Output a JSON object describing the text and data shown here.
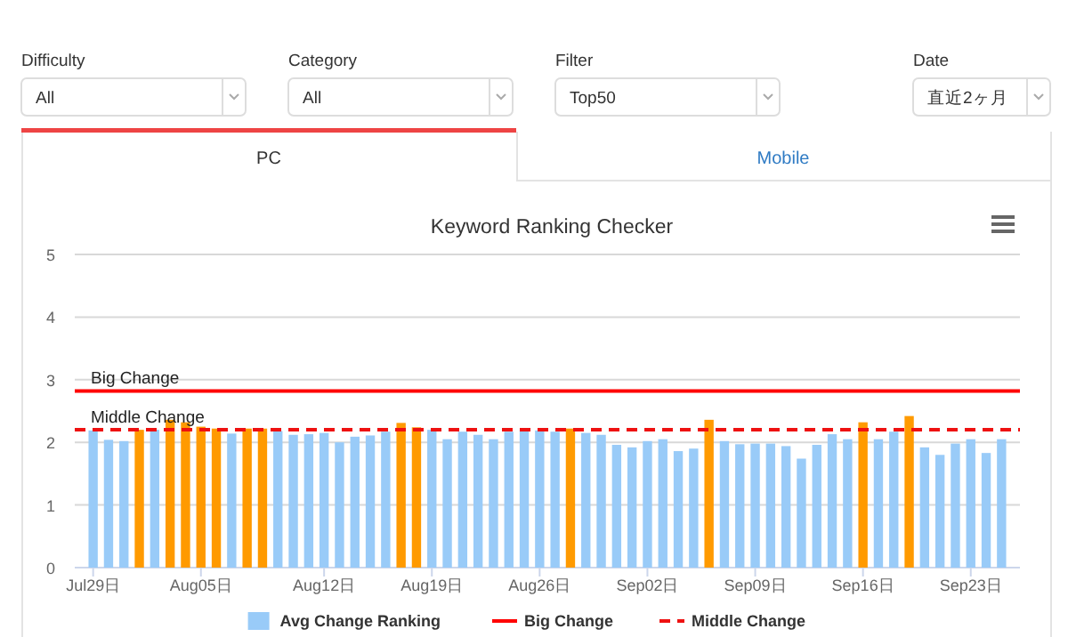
{
  "chart_data": {
    "type": "bar",
    "title": "Keyword Ranking Checker",
    "annotations": [
      "Difficulty",
      "All",
      "Category",
      "All",
      "Filter",
      "Top50",
      "Date",
      "直近2ヶ月",
      "PC",
      "Mobile"
    ],
    "categories": [
      "Jul29日",
      null,
      null,
      null,
      null,
      null,
      null,
      "Aug05日",
      null,
      null,
      null,
      null,
      null,
      null,
      null,
      "Aug12日",
      null,
      null,
      null,
      null,
      null,
      null,
      "Aug19日",
      null,
      null,
      null,
      null,
      null,
      null,
      "Aug26日",
      null,
      null,
      null,
      null,
      null,
      null,
      "Sep02日",
      null,
      null,
      null,
      null,
      null,
      null,
      "Sep09日",
      null,
      null,
      null,
      null,
      null,
      null,
      "Sep16日",
      null,
      null,
      null,
      null,
      null,
      null,
      "Sep23日",
      null,
      null
    ],
    "series": [
      {
        "name": "Avg Change Ranking",
        "color": "#99cbf8",
        "values": [
          2.19,
          2.04,
          2.02,
          2.2,
          2.2,
          2.36,
          2.32,
          2.25,
          2.22,
          2.14,
          2.22,
          2.22,
          2.18,
          2.12,
          2.13,
          2.15,
          2.0,
          2.09,
          2.11,
          2.17,
          2.31,
          2.24,
          2.2,
          2.05,
          2.17,
          2.12,
          2.05,
          2.17,
          2.19,
          2.19,
          2.17,
          2.22,
          2.15,
          2.12,
          1.96,
          1.92,
          2.02,
          2.05,
          1.86,
          1.9,
          2.36,
          2.02,
          1.97,
          1.98,
          1.98,
          1.94,
          1.74,
          1.96,
          2.13,
          2.05,
          2.32,
          2.05,
          2.17,
          2.42,
          1.92,
          1.8,
          1.98,
          2.05,
          1.83,
          2.05
        ],
        "colors": [
          "#99cbf8",
          "#99cbf8",
          "#99cbf8",
          "#ff9a00",
          "#99cbf8",
          "#ff9a00",
          "#ff9a00",
          "#ff9a00",
          "#ff9a00",
          "#99cbf8",
          "#ff9a00",
          "#ff9a00",
          "#99cbf8",
          "#99cbf8",
          "#99cbf8",
          "#99cbf8",
          "#99cbf8",
          "#99cbf8",
          "#99cbf8",
          "#99cbf8",
          "#ff9a00",
          "#ff9a00",
          "#99cbf8",
          "#99cbf8",
          "#99cbf8",
          "#99cbf8",
          "#99cbf8",
          "#99cbf8",
          "#99cbf8",
          "#99cbf8",
          "#99cbf8",
          "#ff9a00",
          "#99cbf8",
          "#99cbf8",
          "#99cbf8",
          "#99cbf8",
          "#99cbf8",
          "#99cbf8",
          "#99cbf8",
          "#99cbf8",
          "#ff9a00",
          "#99cbf8",
          "#99cbf8",
          "#99cbf8",
          "#99cbf8",
          "#99cbf8",
          "#99cbf8",
          "#99cbf8",
          "#99cbf8",
          "#99cbf8",
          "#ff9a00",
          "#99cbf8",
          "#99cbf8",
          "#ff9a00",
          "#99cbf8",
          "#99cbf8",
          "#99cbf8",
          "#99cbf8",
          "#99cbf8",
          "#99cbf8"
        ]
      }
    ],
    "ref_lines": [
      {
        "axis": "y",
        "value": 2.82,
        "label": "Big Change",
        "color": "#ff0000",
        "line_style": "solid"
      },
      {
        "axis": "y",
        "value": 2.2,
        "label": "Middle Change",
        "color": "#ee1111",
        "line_style": "dashed"
      }
    ],
    "ylim": [
      0,
      5
    ],
    "yticks": [
      0,
      1,
      2,
      3,
      4,
      5
    ],
    "grid": "y",
    "legend": "bottom"
  }
}
